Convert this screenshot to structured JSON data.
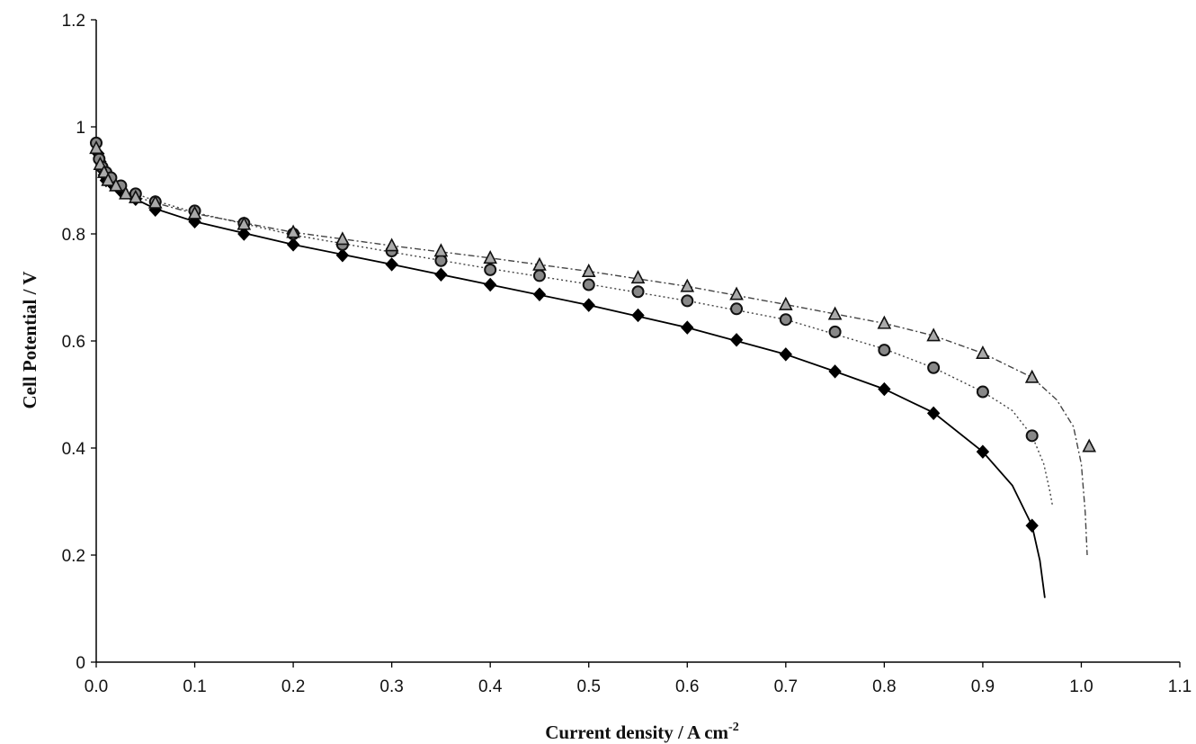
{
  "chart_data": {
    "type": "scatter",
    "xlabel": "Current density / A cm",
    "xlabel_sup": "-2",
    "ylabel": "Cell Potential / V",
    "xlim": [
      0,
      1.1
    ],
    "ylim": [
      0,
      1.2
    ],
    "x_ticks": [
      "0.0",
      "0.1",
      "0.2",
      "0.3",
      "0.4",
      "0.5",
      "0.6",
      "0.7",
      "0.8",
      "0.9",
      "1.0",
      "1.1"
    ],
    "y_ticks": [
      "0",
      "0.2",
      "0.4",
      "0.6",
      "0.8",
      "1",
      "1.2"
    ],
    "grid": false,
    "series": [
      {
        "marker": "diamond",
        "line_style": "solid",
        "color": "#000000",
        "points": [
          [
            0,
            0.97
          ],
          [
            0.002,
            0.95
          ],
          [
            0.004,
            0.935
          ],
          [
            0.006,
            0.92
          ],
          [
            0.008,
            0.91
          ],
          [
            0.01,
            0.9
          ],
          [
            0.015,
            0.895
          ],
          [
            0.025,
            0.88
          ],
          [
            0.04,
            0.865
          ],
          [
            0.06,
            0.845
          ],
          [
            0.1,
            0.823
          ],
          [
            0.15,
            0.8
          ],
          [
            0.2,
            0.78
          ],
          [
            0.25,
            0.76
          ],
          [
            0.3,
            0.743
          ],
          [
            0.35,
            0.724
          ],
          [
            0.4,
            0.705
          ],
          [
            0.45,
            0.687
          ],
          [
            0.5,
            0.667
          ],
          [
            0.55,
            0.648
          ],
          [
            0.6,
            0.625
          ],
          [
            0.65,
            0.602
          ],
          [
            0.7,
            0.575
          ],
          [
            0.75,
            0.543
          ],
          [
            0.8,
            0.51
          ],
          [
            0.85,
            0.465
          ],
          [
            0.9,
            0.393
          ],
          [
            0.95,
            0.255
          ]
        ],
        "fit": [
          [
            0,
            0.97
          ],
          [
            0.005,
            0.925
          ],
          [
            0.01,
            0.905
          ],
          [
            0.02,
            0.89
          ],
          [
            0.04,
            0.865
          ],
          [
            0.06,
            0.847
          ],
          [
            0.1,
            0.823
          ],
          [
            0.2,
            0.78
          ],
          [
            0.3,
            0.743
          ],
          [
            0.4,
            0.705
          ],
          [
            0.5,
            0.667
          ],
          [
            0.6,
            0.625
          ],
          [
            0.7,
            0.575
          ],
          [
            0.75,
            0.543
          ],
          [
            0.8,
            0.51
          ],
          [
            0.85,
            0.466
          ],
          [
            0.9,
            0.393
          ],
          [
            0.93,
            0.33
          ],
          [
            0.95,
            0.255
          ],
          [
            0.958,
            0.19
          ],
          [
            0.963,
            0.12
          ]
        ]
      },
      {
        "marker": "circle",
        "line_style": "dotted",
        "color": "#444444",
        "points": [
          [
            0,
            0.97
          ],
          [
            0.003,
            0.94
          ],
          [
            0.006,
            0.925
          ],
          [
            0.01,
            0.915
          ],
          [
            0.015,
            0.905
          ],
          [
            0.025,
            0.89
          ],
          [
            0.04,
            0.875
          ],
          [
            0.06,
            0.86
          ],
          [
            0.1,
            0.843
          ],
          [
            0.15,
            0.82
          ],
          [
            0.2,
            0.8
          ],
          [
            0.25,
            0.78
          ],
          [
            0.3,
            0.768
          ],
          [
            0.35,
            0.75
          ],
          [
            0.4,
            0.733
          ],
          [
            0.45,
            0.722
          ],
          [
            0.5,
            0.705
          ],
          [
            0.55,
            0.692
          ],
          [
            0.6,
            0.675
          ],
          [
            0.65,
            0.66
          ],
          [
            0.7,
            0.64
          ],
          [
            0.75,
            0.617
          ],
          [
            0.8,
            0.583
          ],
          [
            0.85,
            0.55
          ],
          [
            0.9,
            0.505
          ],
          [
            0.95,
            0.423
          ]
        ],
        "fit": [
          [
            0,
            0.97
          ],
          [
            0.01,
            0.91
          ],
          [
            0.02,
            0.893
          ],
          [
            0.04,
            0.875
          ],
          [
            0.06,
            0.862
          ],
          [
            0.1,
            0.84
          ],
          [
            0.2,
            0.798
          ],
          [
            0.3,
            0.766
          ],
          [
            0.4,
            0.735
          ],
          [
            0.5,
            0.706
          ],
          [
            0.6,
            0.675
          ],
          [
            0.7,
            0.64
          ],
          [
            0.8,
            0.585
          ],
          [
            0.85,
            0.55
          ],
          [
            0.9,
            0.505
          ],
          [
            0.93,
            0.47
          ],
          [
            0.95,
            0.423
          ],
          [
            0.962,
            0.37
          ],
          [
            0.968,
            0.32
          ],
          [
            0.971,
            0.29
          ]
        ]
      },
      {
        "marker": "triangle",
        "line_style": "dash-dot",
        "color": "#444444",
        "points": [
          [
            0,
            0.96
          ],
          [
            0.004,
            0.93
          ],
          [
            0.008,
            0.915
          ],
          [
            0.012,
            0.9
          ],
          [
            0.02,
            0.89
          ],
          [
            0.03,
            0.875
          ],
          [
            0.04,
            0.868
          ],
          [
            0.06,
            0.858
          ],
          [
            0.1,
            0.838
          ],
          [
            0.15,
            0.818
          ],
          [
            0.2,
            0.803
          ],
          [
            0.25,
            0.79
          ],
          [
            0.3,
            0.778
          ],
          [
            0.35,
            0.768
          ],
          [
            0.4,
            0.755
          ],
          [
            0.45,
            0.742
          ],
          [
            0.5,
            0.73
          ],
          [
            0.55,
            0.718
          ],
          [
            0.6,
            0.702
          ],
          [
            0.65,
            0.687
          ],
          [
            0.7,
            0.668
          ],
          [
            0.75,
            0.65
          ],
          [
            0.8,
            0.633
          ],
          [
            0.85,
            0.61
          ],
          [
            0.9,
            0.577
          ],
          [
            0.95,
            0.532
          ],
          [
            1.008,
            0.403
          ]
        ],
        "fit": [
          [
            0,
            0.96
          ],
          [
            0.01,
            0.905
          ],
          [
            0.03,
            0.876
          ],
          [
            0.06,
            0.858
          ],
          [
            0.1,
            0.838
          ],
          [
            0.2,
            0.803
          ],
          [
            0.3,
            0.778
          ],
          [
            0.4,
            0.755
          ],
          [
            0.5,
            0.73
          ],
          [
            0.6,
            0.702
          ],
          [
            0.7,
            0.668
          ],
          [
            0.8,
            0.633
          ],
          [
            0.85,
            0.61
          ],
          [
            0.9,
            0.577
          ],
          [
            0.95,
            0.532
          ],
          [
            0.975,
            0.49
          ],
          [
            0.992,
            0.44
          ],
          [
            1.0,
            0.37
          ],
          [
            1.004,
            0.28
          ],
          [
            1.006,
            0.2
          ]
        ]
      }
    ]
  }
}
